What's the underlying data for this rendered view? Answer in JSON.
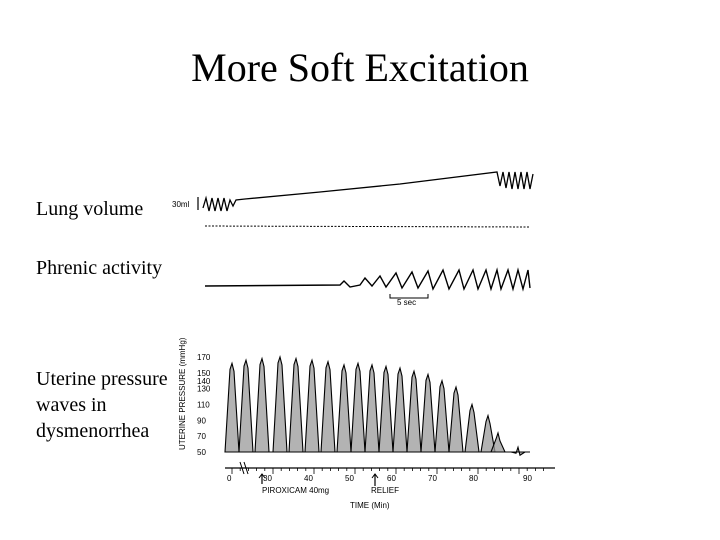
{
  "slide": {
    "title": "More Soft Excitation",
    "labels": {
      "lung": "Lung volume",
      "phrenic": "Phrenic activity",
      "uterine": "Uterine pressure waves in dysmenorrhea"
    }
  },
  "traces": {
    "lung_scale": "30ml",
    "phrenic_scale": "5 sec"
  },
  "chart_data": {
    "type": "line",
    "ylabel": "UTERINE PRESSURE (mmHg)",
    "xlabel": "TIME (Min)",
    "yticks": [
      170,
      150,
      140,
      130,
      110,
      90,
      70,
      50
    ],
    "xticks": [
      0,
      30,
      40,
      50,
      60,
      70,
      80,
      90
    ],
    "ylim": [
      50,
      170
    ],
    "xlim": [
      0,
      90
    ],
    "annotations": [
      "PIROXICAM 40mg",
      "RELIEF"
    ]
  }
}
